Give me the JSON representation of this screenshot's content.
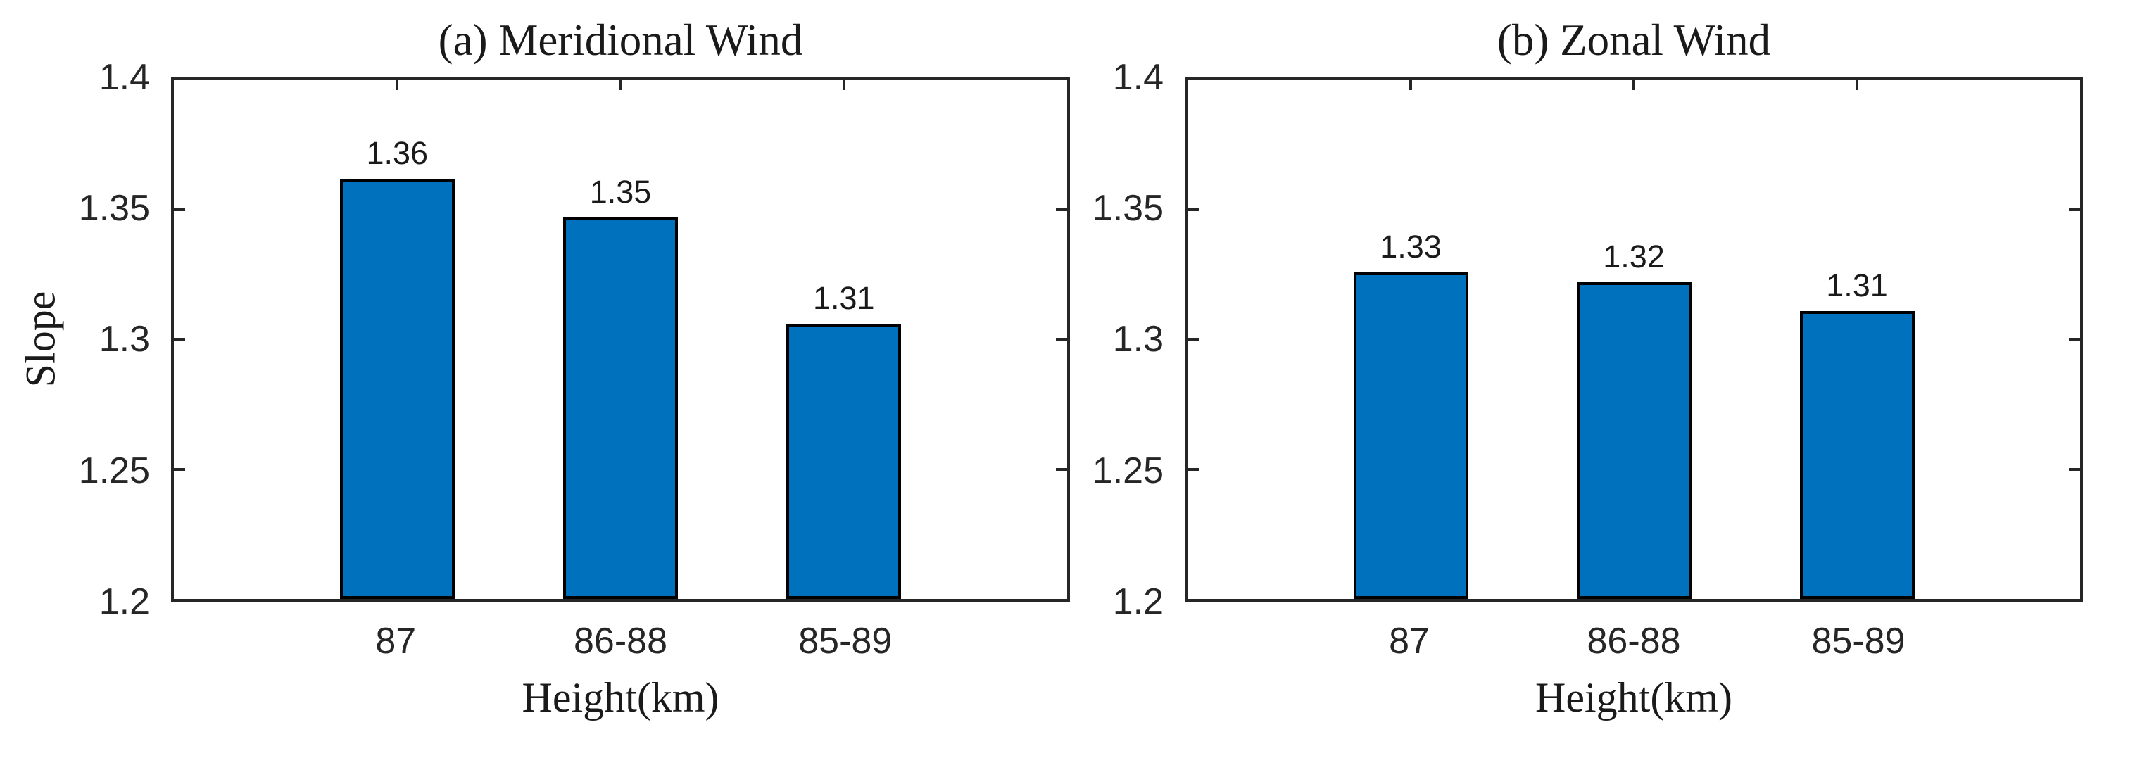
{
  "figure": {
    "background": "#ffffff",
    "text_color": "#1a1a1a",
    "axis_color": "#262626"
  },
  "chart_data": [
    {
      "type": "bar",
      "panel_label": "a",
      "title": "(a) Meridional Wind",
      "xlabel": "Height(km)",
      "ylabel": "Slope",
      "categories": [
        "87",
        "86-88",
        "85-89"
      ],
      "values": [
        1.362,
        1.347,
        1.306
      ],
      "bar_value_labels": [
        "1.36",
        "1.35",
        "1.31"
      ],
      "ylim": [
        1.2,
        1.4
      ],
      "yticks": [
        1.2,
        1.25,
        1.3,
        1.35,
        1.4
      ],
      "ytick_labels": [
        "1.2",
        "1.25",
        "1.3",
        "1.35",
        "1.4"
      ],
      "bar_color": "#0072BD",
      "bar_edge_color": "#000000",
      "grid": false,
      "legend": null
    },
    {
      "type": "bar",
      "panel_label": "b",
      "title": "(b) Zonal Wind",
      "xlabel": "Height(km)",
      "ylabel": "",
      "categories": [
        "87",
        "86-88",
        "85-89"
      ],
      "values": [
        1.326,
        1.322,
        1.311
      ],
      "bar_value_labels": [
        "1.33",
        "1.32",
        "1.31"
      ],
      "ylim": [
        1.2,
        1.4
      ],
      "yticks": [
        1.2,
        1.25,
        1.3,
        1.35,
        1.4
      ],
      "ytick_labels": [
        "1.2",
        "1.25",
        "1.3",
        "1.35",
        "1.4"
      ],
      "bar_color": "#0072BD",
      "bar_edge_color": "#000000",
      "grid": false,
      "legend": null
    }
  ]
}
